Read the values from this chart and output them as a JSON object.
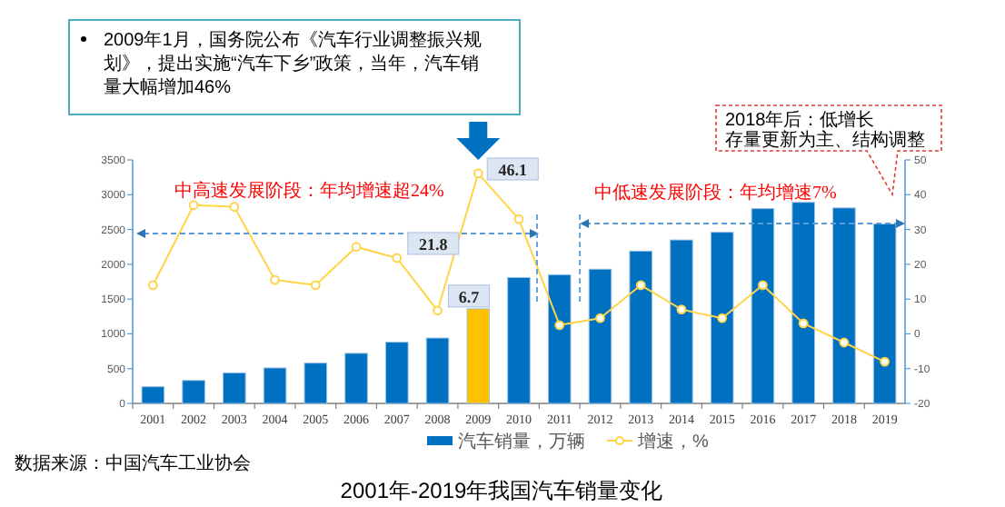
{
  "chart_data": {
    "type": "bar",
    "title": "2001年-2019年我国汽车销量变化",
    "categories": [
      "2001",
      "2002",
      "2003",
      "2004",
      "2005",
      "2006",
      "2007",
      "2008",
      "2009",
      "2010",
      "2011",
      "2012",
      "2013",
      "2014",
      "2015",
      "2016",
      "2017",
      "2018",
      "2019"
    ],
    "series": [
      {
        "name": "汽车销量，万辆",
        "color": "#0070c0",
        "colors": [
          "#0070c0",
          "#0070c0",
          "#0070c0",
          "#0070c0",
          "#0070c0",
          "#0070c0",
          "#0070c0",
          "#0070c0",
          "#ffc000",
          "#0070c0",
          "#0070c0",
          "#0070c0",
          "#0070c0",
          "#0070c0",
          "#0070c0",
          "#0070c0",
          "#0070c0",
          "#0070c0",
          "#0070c0"
        ],
        "values": [
          240,
          330,
          440,
          510,
          580,
          720,
          880,
          940,
          1360,
          1810,
          1850,
          1930,
          2190,
          2350,
          2460,
          2800,
          2890,
          2810,
          2580
        ]
      },
      {
        "name": "增速，%",
        "type": "line",
        "axis": "y2",
        "color": "#ffd447",
        "values": [
          14,
          37,
          36.5,
          15.5,
          14,
          25,
          21.8,
          6.7,
          46.1,
          33,
          2.5,
          4.5,
          14,
          7,
          4.5,
          14,
          3,
          -2.5,
          -8
        ],
        "value_labels": [
          null,
          null,
          null,
          null,
          null,
          null,
          "21.8",
          "6.7",
          "46.1",
          null,
          null,
          null,
          null,
          null,
          null,
          null,
          null,
          null,
          null
        ]
      }
    ],
    "marker": "circle",
    "ylim": [
      0,
      3500
    ],
    "yticks": [
      0,
      500,
      1000,
      1500,
      2000,
      2500,
      3000,
      3500
    ],
    "y2lim": [
      -20,
      50
    ],
    "y2ticks": [
      -20,
      -10,
      0,
      10,
      20,
      30,
      40,
      50
    ],
    "legend": "bottom",
    "annotations": [
      "2009年1月，国务院公布《汽车行业调整振兴规划》，提出实施“汽车下乡”政策，当年，汽车销量大幅增加46%",
      "2018年后：低增长",
      "存量更新为主、结构调整",
      "中高速发展阶段：年均增速超24%",
      "中低速发展阶段：年均增速7%",
      "数据来源：中国汽车工业协会"
    ]
  }
}
